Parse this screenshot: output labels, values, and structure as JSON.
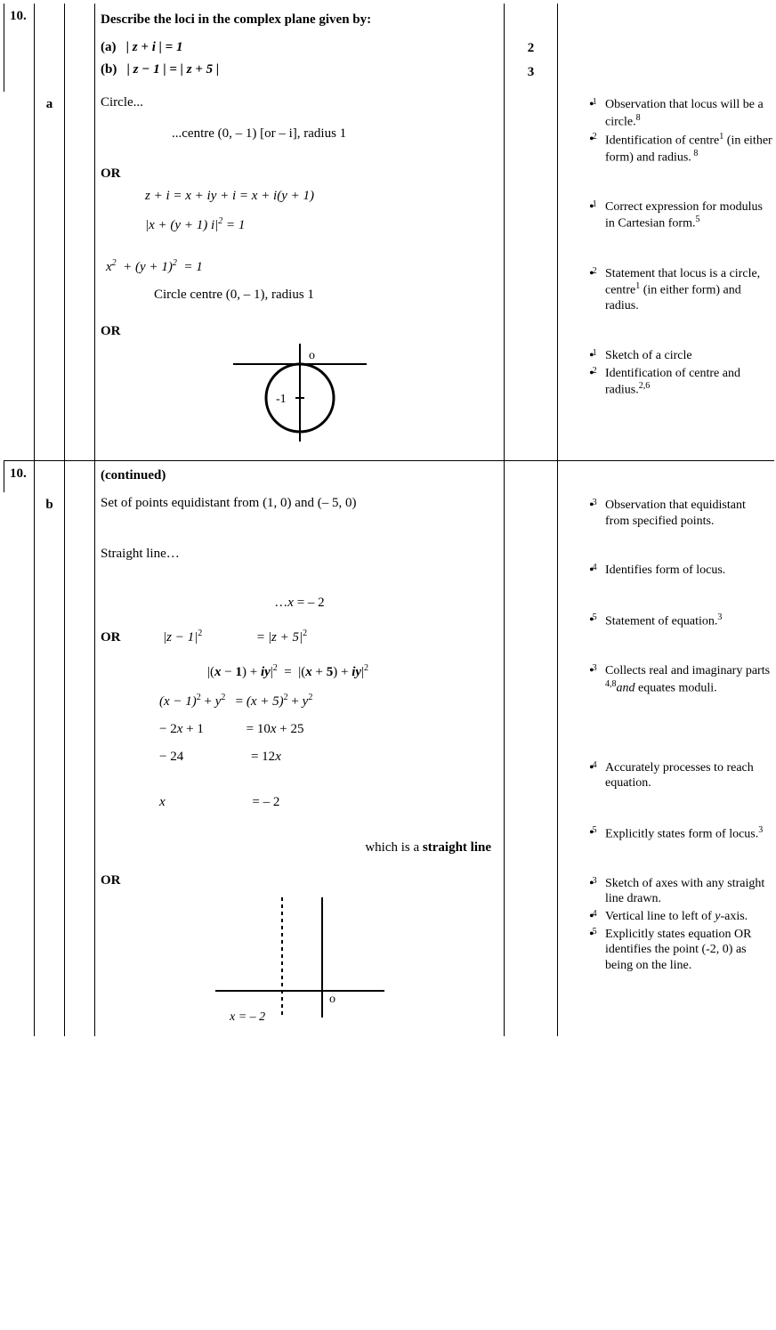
{
  "q": {
    "num": "10.",
    "prompt": "Describe the loci in the complex plane given by:",
    "part_a_label": "(a)",
    "part_a_eq": "| z + i | = 1",
    "part_a_marks": "2",
    "part_b_label": "(b)",
    "part_b_eq": "| z − 1 | = | z + 5 |",
    "part_b_marks": "3",
    "continued": "(continued)"
  },
  "a": {
    "sub": "a",
    "l1": "Circle...",
    "l2": "...centre (0, – 1) [or  – i], radius 1",
    "or": "OR",
    "alt1_1": "z + i = x + iy + i = x + i(y + 1)",
    "alt1_2": "| x + (y + 1) i |² = 1",
    "alt1_3": "x²  + (y + 1)²  = 1",
    "alt1_4": "Circle centre (0, – 1), radius 1",
    "sketch_centre_label": "-1",
    "sketch_origin_label": "o"
  },
  "b": {
    "sub": "b",
    "l1": "Set of points equidistant from (1, 0) and (– 5, 0)",
    "l2": "Straight line…",
    "l3": "…x = – 2",
    "or": "OR",
    "alt1_lhs1": "| z − 1 |²",
    "alt1_rhs1": "= | z + 5 |²",
    "alt1_line2": "|(x − 1) + iy|²  =  |(x + 5) + iy|²",
    "alt1_lhs3": "(x − 1)² + y²",
    "alt1_rhs3": "= (x + 5)² + y²",
    "alt1_lhs4": "− 2x + 1",
    "alt1_rhs4": "= 10x + 25",
    "alt1_lhs5": "− 24",
    "alt1_rhs5": "= 12x",
    "alt1_lhs6": "x",
    "alt1_rhs6": "= – 2",
    "concl_pre": "which is a ",
    "concl_bold": "straight line",
    "sketch_label": "x = – 2",
    "sketch_origin": "o"
  },
  "notes_a": [
    {
      "m": "1",
      "t": "Observation that locus will be a circle.",
      "fn": "8"
    },
    {
      "m": "2",
      "t": "Identification of centre",
      "fn": "1",
      "t2": " (in either form) and radius.",
      "fn2": " 8"
    },
    {
      "gap": true
    },
    {
      "m": "1",
      "t": "Correct expression for modulus in Cartesian form.",
      "fn": "5"
    },
    {
      "gap": true
    },
    {
      "m": "2",
      "t": "Statement that locus is a circle, centre",
      "fn": "1",
      "t2": " (in either form) and radius."
    },
    {
      "gap": true
    },
    {
      "m": "1",
      "t": "Sketch of a circle"
    },
    {
      "m": "2",
      "t": "Identification of centre and radius.",
      "fn": "2,6"
    }
  ],
  "notes_b": [
    {
      "m": "3",
      "t": "Observation that equidistant from specified points."
    },
    {
      "gap": true
    },
    {
      "m": "4",
      "t": "Identifies form of locus."
    },
    {
      "gap": true
    },
    {
      "m": "5",
      "t": "Statement of equation.",
      "fn": "3"
    },
    {
      "gap": true
    },
    {
      "m": "3",
      "t": "Collects real and imaginary parts ",
      "it": "and",
      "t2": " equates moduli.",
      "fn": "4,8"
    },
    {
      "gap": true
    },
    {
      "gap": true
    },
    {
      "m": "4",
      "t": "Accurately processes to reach equation."
    },
    {
      "gap": true
    },
    {
      "m": "5",
      "t": "Explicitly states form of locus.",
      "fn": "3"
    },
    {
      "gap": true
    },
    {
      "m": "3",
      "t": "Sketch of axes with any straight line drawn."
    },
    {
      "m": "4",
      "t": "Vertical line to left of ",
      "it": "y",
      "t2": "-axis."
    },
    {
      "m": "5",
      "t": "Explicitly states equation OR identifies the point  (-2, 0) as being on the line."
    }
  ],
  "style": {
    "border_color": "#000000",
    "bg": "#ffffff",
    "font": "Times New Roman"
  }
}
